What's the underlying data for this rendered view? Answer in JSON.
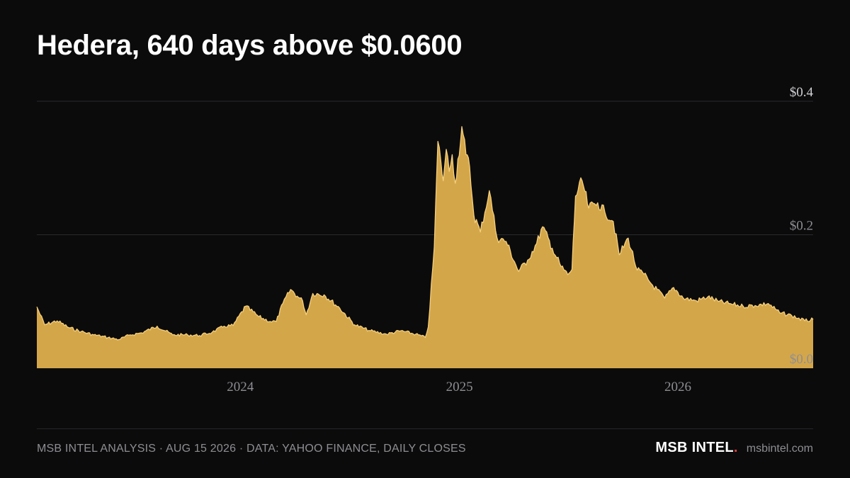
{
  "title": "Hedera, 640 days above $0.0600",
  "footer": {
    "source": "MSB INTEL ANALYSIS · AUG 15 2026 · DATA: YAHOO FINANCE, DAILY CLOSES",
    "brand": "MSB INTEL",
    "brand_dot": ".",
    "site": "msbintel.com"
  },
  "colors": {
    "background": "#0b0b0c",
    "area_fill": "#d4a64a",
    "area_line": "#f5cf7a",
    "grid": "#2a2a2e",
    "muted_text": "#8e8e93",
    "brand_accent": "#e0403a"
  },
  "chart_data": {
    "type": "area",
    "title": "Hedera, 640 days above $0.0600",
    "xlabel": "",
    "ylabel": "",
    "x_ticks": [
      "2024",
      "2025",
      "2026"
    ],
    "y_ticks": [
      {
        "value": 0.0,
        "label": "$0.0"
      },
      {
        "value": 0.2,
        "label": "$0.2"
      },
      {
        "value": 0.4,
        "label": "$0.4"
      }
    ],
    "xlim": [
      "2023-01-26",
      "2026-08-15"
    ],
    "ylim": [
      0,
      0.4
    ],
    "grid": true,
    "legend": "none",
    "x": [
      "2023-01-26",
      "2023-02-08",
      "2023-03-01",
      "2023-03-20",
      "2023-04-10",
      "2023-05-01",
      "2023-05-25",
      "2023-06-12",
      "2023-07-01",
      "2023-07-20",
      "2023-08-15",
      "2023-09-10",
      "2023-10-05",
      "2023-10-25",
      "2023-11-15",
      "2023-12-05",
      "2023-12-20",
      "2024-01-10",
      "2024-02-01",
      "2024-02-20",
      "2024-03-01",
      "2024-03-12",
      "2024-03-25",
      "2024-04-05",
      "2024-04-14",
      "2024-04-20",
      "2024-05-01",
      "2024-05-20",
      "2024-06-15",
      "2024-07-10",
      "2024-08-05",
      "2024-09-01",
      "2024-09-25",
      "2024-10-20",
      "2024-11-05",
      "2024-11-10",
      "2024-11-20",
      "2024-11-26",
      "2024-12-01",
      "2024-12-05",
      "2024-12-10",
      "2024-12-15",
      "2024-12-20",
      "2024-12-25",
      "2025-01-05",
      "2025-01-12",
      "2025-01-18",
      "2025-01-25",
      "2025-02-05",
      "2025-02-20",
      "2025-03-05",
      "2025-03-20",
      "2025-04-10",
      "2025-04-25",
      "2025-05-10",
      "2025-05-20",
      "2025-06-05",
      "2025-06-20",
      "2025-07-01",
      "2025-07-08",
      "2025-07-14",
      "2025-07-25",
      "2025-08-05",
      "2025-08-20",
      "2025-09-01",
      "2025-09-15",
      "2025-09-25",
      "2025-10-10",
      "2025-10-25",
      "2025-11-05",
      "2025-11-20",
      "2025-12-10",
      "2025-12-25",
      "2026-01-10",
      "2026-02-01",
      "2026-02-20",
      "2026-03-10",
      "2026-04-01",
      "2026-04-20",
      "2026-05-10",
      "2026-06-01",
      "2026-06-20",
      "2026-07-10",
      "2026-08-01",
      "2026-08-15"
    ],
    "series": [
      {
        "values": [
          0.092,
          0.065,
          0.071,
          0.061,
          0.055,
          0.05,
          0.046,
          0.043,
          0.05,
          0.053,
          0.063,
          0.05,
          0.05,
          0.049,
          0.054,
          0.063,
          0.064,
          0.093,
          0.077,
          0.07,
          0.07,
          0.097,
          0.118,
          0.108,
          0.101,
          0.08,
          0.112,
          0.11,
          0.09,
          0.065,
          0.056,
          0.051,
          0.056,
          0.051,
          0.046,
          0.062,
          0.182,
          0.34,
          0.31,
          0.281,
          0.328,
          0.295,
          0.32,
          0.277,
          0.362,
          0.32,
          0.302,
          0.23,
          0.204,
          0.266,
          0.195,
          0.19,
          0.145,
          0.162,
          0.187,
          0.212,
          0.18,
          0.152,
          0.14,
          0.148,
          0.258,
          0.281,
          0.24,
          0.248,
          0.234,
          0.22,
          0.17,
          0.195,
          0.147,
          0.141,
          0.124,
          0.105,
          0.121,
          0.105,
          0.101,
          0.107,
          0.1,
          0.096,
          0.093,
          0.094,
          0.097,
          0.083,
          0.079,
          0.071,
          0.073
        ]
      }
    ]
  }
}
